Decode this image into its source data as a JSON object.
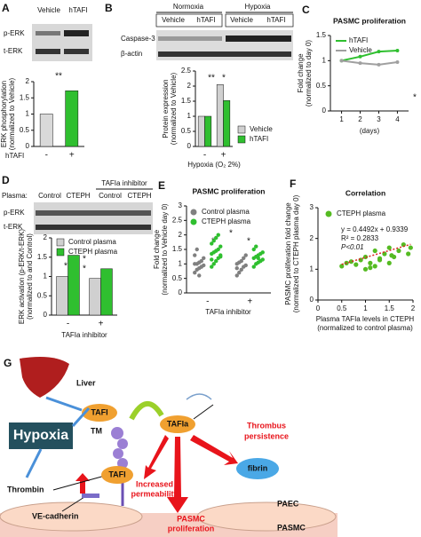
{
  "panel_labels": [
    "A",
    "B",
    "C",
    "D",
    "E",
    "F",
    "G"
  ],
  "blots": {
    "A": {
      "columns": [
        "Vehicle",
        "hTAFI"
      ],
      "rows": [
        "p-ERK",
        "t-ERK"
      ]
    },
    "B": {
      "groups": [
        "Normoxia",
        "Hypoxia"
      ],
      "columns": [
        "Vehicle",
        "hTAFI",
        "Vehicle",
        "hTAFI"
      ],
      "rows": [
        "Caspase-3",
        "β-actin"
      ]
    },
    "D": {
      "plasma_label": "Plasma:",
      "inhibitor": "TAFIa inhibitor",
      "columns": [
        "Control",
        "CTEPH",
        "Control",
        "CTEPH"
      ],
      "rows": [
        "p-ERK",
        "t-ERK"
      ]
    }
  },
  "chart_data": [
    {
      "type": "bar",
      "ylabel": [
        "ERK phosphorylation",
        "(normalized to Vehicle)"
      ],
      "xlabel": "hTAFI",
      "categories": [
        "-",
        "+"
      ],
      "values": [
        1.0,
        1.72
      ],
      "colors": [
        "#d9d9d9",
        "#2fbf2f"
      ],
      "ylim": [
        0,
        2
      ],
      "yticks": [
        0,
        0.5,
        1,
        1.5,
        2
      ],
      "annotations": [
        "**"
      ]
    },
    {
      "type": "bar",
      "ylabel": [
        "Protein expression",
        "(normalized to Vehicle)"
      ],
      "xlabel": "Hypoxia (O₂ 2%)",
      "categories": [
        "-",
        "+"
      ],
      "series": [
        {
          "name": "Vehicle",
          "color": "#d0d0d0",
          "values": [
            1.0,
            2.05
          ]
        },
        {
          "name": "hTAFI",
          "color": "#2fbf2f",
          "values": [
            1.0,
            1.52
          ]
        }
      ],
      "ylim": [
        0,
        2.5
      ],
      "yticks": [
        0,
        0.5,
        1,
        1.5,
        2,
        2.5
      ],
      "annotations": [
        "**",
        "*"
      ]
    },
    {
      "type": "line",
      "title": "PASMC proliferation",
      "ylabel": [
        "Fold change",
        "(normalized to day 0)"
      ],
      "xlabel": "(days)",
      "x": [
        1,
        2,
        3,
        4
      ],
      "series": [
        {
          "name": "hTAFI",
          "color": "#2fbf2f",
          "values": [
            1.0,
            1.08,
            1.18,
            1.2
          ]
        },
        {
          "name": "Vehicle",
          "color": "#a0a0a0",
          "values": [
            1.0,
            0.95,
            0.92,
            0.97
          ]
        }
      ],
      "xlim": [
        0.4,
        4.6
      ],
      "xticks": [
        1,
        2,
        3,
        4
      ],
      "ylim": [
        0,
        1.5
      ],
      "yticks": [
        0,
        0.5,
        1,
        1.5
      ],
      "annotations": [
        "*"
      ]
    },
    {
      "type": "bar",
      "ylabel": [
        "ERK activation (p-ERK/t-ERK)",
        "(normalized to and Control)"
      ],
      "xlabel": "TAFIa inhibitor",
      "categories": [
        "-",
        "+"
      ],
      "series": [
        {
          "name": "Control plasma",
          "color": "#d0d0d0",
          "values": [
            1.0,
            0.95
          ]
        },
        {
          "name": "CTEPH plasma",
          "color": "#2fbf2f",
          "values": [
            1.55,
            1.2
          ]
        }
      ],
      "ylim": [
        0,
        2
      ],
      "yticks": [
        0,
        0.5,
        1,
        1.5,
        2
      ],
      "annotations": [
        "*",
        "*",
        "*",
        "*"
      ]
    },
    {
      "type": "strip",
      "title": "PASMC proliferation",
      "ylabel": [
        "Fold change",
        "(normalized to Vehicle day 0)"
      ],
      "xlabel": "TAFIa inhibitor",
      "categories": [
        "-",
        "+"
      ],
      "series": [
        {
          "name": "Control plasma",
          "color": "#808080",
          "values": [
            [
              0.7,
              0.8,
              0.85,
              0.9,
              0.95,
              1.0,
              1.0,
              1.05,
              1.1,
              1.2,
              1.3,
              1.5,
              0.6,
              0.9
            ],
            [
              0.6,
              0.7,
              0.8,
              0.9,
              0.95,
              1.0,
              1.05,
              1.1,
              1.2,
              1.3,
              0.85
            ]
          ]
        },
        {
          "name": "CTEPH plasma",
          "color": "#2fbf2f",
          "values": [
            [
              0.9,
              1.0,
              1.1,
              1.2,
              1.3,
              1.35,
              1.4,
              1.45,
              1.5,
              1.6,
              1.7,
              1.8,
              1.9,
              2.0,
              1.25,
              1.15
            ],
            [
              0.9,
              1.0,
              1.05,
              1.1,
              1.15,
              1.2,
              1.25,
              1.3,
              1.35,
              1.4,
              1.5,
              1.6,
              1.2,
              1.1
            ]
          ]
        }
      ],
      "ylim": [
        0,
        3
      ],
      "yticks": [
        0,
        0.5,
        1,
        1.5,
        2,
        2.5,
        3
      ],
      "annotations": [
        "*",
        "*",
        "*"
      ]
    },
    {
      "type": "scatter",
      "title": "Correlation",
      "ylabel": [
        "PASMC proliferation fold change",
        "(normalized to CTEPH plasma day 0)"
      ],
      "xlabel": [
        "Plasma TAFIa levels in CTEPH",
        "(normalized to control plasma)"
      ],
      "series": [
        {
          "name": "CTEPH plasma",
          "color": "#55bb22",
          "x": [
            0.5,
            0.6,
            0.8,
            0.9,
            1.0,
            1.0,
            1.1,
            1.2,
            1.2,
            1.3,
            1.4,
            1.5,
            1.5,
            1.6,
            1.7,
            1.8,
            1.9,
            1.95,
            0.7,
            1.1,
            1.3,
            1.55
          ],
          "values": [
            1.1,
            1.2,
            1.15,
            1.3,
            1.0,
            1.4,
            1.2,
            1.1,
            1.6,
            1.3,
            1.5,
            1.2,
            1.7,
            1.4,
            1.6,
            1.8,
            1.5,
            1.7,
            1.25,
            1.05,
            1.35,
            1.45
          ]
        }
      ],
      "fit": {
        "slope": 0.4492,
        "intercept": 0.9339,
        "label": "y = 0.4492x + 0.9339",
        "color": "#dd2222"
      },
      "annotations": [
        "R² = 0.2833",
        "P<0.01"
      ],
      "xlim": [
        0,
        2
      ],
      "xticks": [
        0,
        0.5,
        1,
        1.5,
        2
      ],
      "ylim": [
        0,
        3
      ],
      "yticks": [
        0,
        1,
        2,
        3
      ]
    }
  ],
  "diagram": {
    "liver": "Liver",
    "tafi_1": "TAFI",
    "hypoxia": "Hypoxia",
    "tm": "TM",
    "thrombin": "Thrombin",
    "tafi_2": "TAFI",
    "tafia": "TAFIa",
    "thrombus": [
      "Thrombus",
      "persistence"
    ],
    "permeability": [
      "Increased",
      "permeability"
    ],
    "fibrin": "fibrin",
    "proliferation": [
      "PASMC",
      "proliferation"
    ],
    "ve_cadherin": "VE-cadherin",
    "paec": "PAEC",
    "pasmc": "PASMC"
  }
}
